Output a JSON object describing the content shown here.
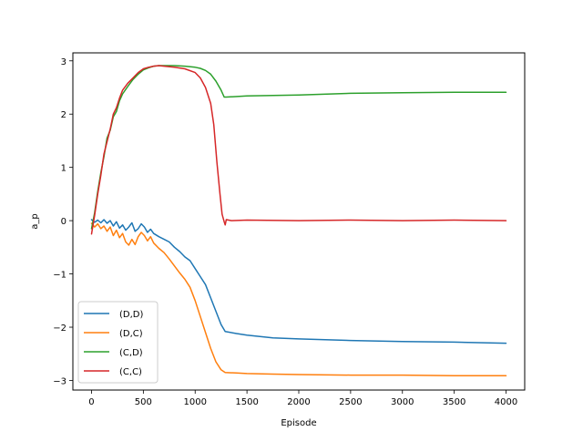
{
  "chart_data": {
    "type": "line",
    "title": "",
    "xlabel": "Episode",
    "ylabel": "a_p",
    "xlim": [
      -180,
      4180
    ],
    "ylim": [
      -3.18,
      3.15
    ],
    "xticks": [
      0,
      500,
      1000,
      1500,
      2000,
      2500,
      3000,
      3500,
      4000
    ],
    "xtick_labels": [
      "0",
      "500",
      "1000",
      "1500",
      "2000",
      "2500",
      "3000",
      "3500",
      "4000"
    ],
    "yticks": [
      -3,
      -2,
      -1,
      0,
      1,
      2,
      3
    ],
    "ytick_labels": [
      "−3",
      "−2",
      "−1",
      "0",
      "1",
      "2",
      "3"
    ],
    "grid": false,
    "legend_position": "lower-left",
    "series": [
      {
        "name": "(D,D)",
        "color": "#1f77b4",
        "x": [
          0,
          30,
          60,
          90,
          120,
          150,
          180,
          210,
          240,
          270,
          300,
          330,
          360,
          390,
          420,
          450,
          480,
          510,
          540,
          570,
          600,
          650,
          700,
          750,
          800,
          850,
          900,
          950,
          1000,
          1050,
          1100,
          1150,
          1200,
          1250,
          1290,
          1400,
          1500,
          1750,
          2000,
          2500,
          3000,
          3500,
          4000
        ],
        "y": [
          0.02,
          -0.03,
          0.01,
          -0.04,
          0.02,
          -0.05,
          0.0,
          -0.1,
          -0.02,
          -0.14,
          -0.08,
          -0.18,
          -0.12,
          -0.04,
          -0.2,
          -0.15,
          -0.06,
          -0.12,
          -0.22,
          -0.16,
          -0.24,
          -0.3,
          -0.35,
          -0.4,
          -0.5,
          -0.58,
          -0.68,
          -0.75,
          -0.9,
          -1.05,
          -1.2,
          -1.45,
          -1.7,
          -1.95,
          -2.08,
          -2.12,
          -2.15,
          -2.2,
          -2.22,
          -2.25,
          -2.27,
          -2.28,
          -2.3
        ]
      },
      {
        "name": "(D,C)",
        "color": "#ff7f0e",
        "x": [
          0,
          30,
          60,
          90,
          120,
          150,
          180,
          210,
          240,
          270,
          300,
          330,
          360,
          390,
          420,
          450,
          480,
          510,
          540,
          570,
          600,
          650,
          700,
          750,
          800,
          850,
          900,
          950,
          1000,
          1050,
          1100,
          1150,
          1200,
          1250,
          1290,
          1400,
          1500,
          1750,
          2000,
          2500,
          3000,
          3500,
          4000
        ],
        "y": [
          -0.05,
          -0.12,
          -0.06,
          -0.15,
          -0.1,
          -0.2,
          -0.12,
          -0.28,
          -0.18,
          -0.32,
          -0.24,
          -0.4,
          -0.46,
          -0.35,
          -0.45,
          -0.3,
          -0.22,
          -0.28,
          -0.38,
          -0.3,
          -0.42,
          -0.52,
          -0.6,
          -0.72,
          -0.85,
          -0.98,
          -1.1,
          -1.25,
          -1.5,
          -1.8,
          -2.1,
          -2.4,
          -2.65,
          -2.8,
          -2.85,
          -2.86,
          -2.87,
          -2.88,
          -2.89,
          -2.9,
          -2.9,
          -2.91,
          -2.91
        ]
      },
      {
        "name": "(C,D)",
        "color": "#2ca02c",
        "x": [
          0,
          30,
          60,
          90,
          120,
          150,
          180,
          210,
          240,
          270,
          300,
          350,
          400,
          450,
          500,
          550,
          600,
          650,
          700,
          800,
          900,
          1000,
          1050,
          1100,
          1150,
          1200,
          1250,
          1280,
          1300,
          1500,
          2000,
          2500,
          3000,
          3500,
          4000
        ],
        "y": [
          -0.15,
          0.15,
          0.55,
          0.9,
          1.2,
          1.55,
          1.7,
          1.95,
          2.05,
          2.25,
          2.38,
          2.52,
          2.65,
          2.75,
          2.83,
          2.87,
          2.9,
          2.91,
          2.91,
          2.91,
          2.9,
          2.88,
          2.86,
          2.82,
          2.75,
          2.62,
          2.45,
          2.32,
          2.32,
          2.34,
          2.36,
          2.39,
          2.4,
          2.41,
          2.41
        ]
      },
      {
        "name": "(C,C)",
        "color": "#d62728",
        "x": [
          0,
          30,
          60,
          90,
          120,
          150,
          180,
          210,
          240,
          270,
          300,
          350,
          400,
          450,
          500,
          550,
          600,
          650,
          700,
          800,
          900,
          1000,
          1050,
          1100,
          1150,
          1180,
          1210,
          1240,
          1260,
          1280,
          1290,
          1300,
          1350,
          1500,
          2000,
          2500,
          3000,
          3500,
          4000
        ],
        "y": [
          -0.25,
          0.1,
          0.5,
          0.85,
          1.25,
          1.48,
          1.72,
          2.0,
          2.12,
          2.3,
          2.45,
          2.58,
          2.68,
          2.78,
          2.85,
          2.88,
          2.9,
          2.91,
          2.9,
          2.88,
          2.85,
          2.78,
          2.68,
          2.5,
          2.2,
          1.8,
          1.1,
          0.5,
          0.12,
          -0.02,
          -0.08,
          0.02,
          0.0,
          0.01,
          0.0,
          0.01,
          0.0,
          0.01,
          0.0
        ]
      }
    ]
  }
}
